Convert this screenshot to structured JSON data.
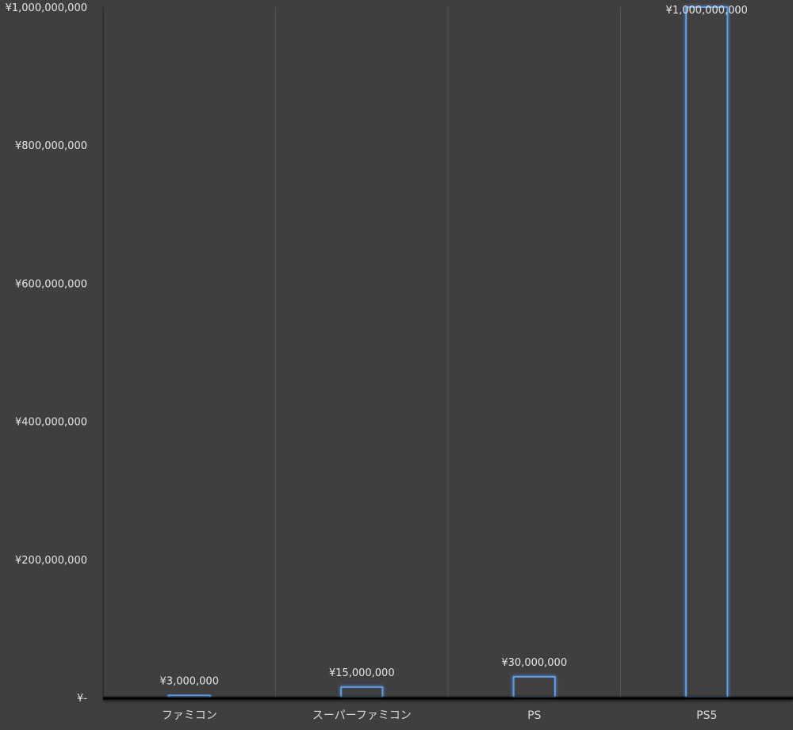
{
  "chart_data": {
    "type": "bar",
    "categories": [
      "ファミコン",
      "スーパーファミコン",
      "PS",
      "PS5"
    ],
    "values": [
      3000000,
      15000000,
      30000000,
      1000000000
    ],
    "data_labels": [
      "¥3,000,000",
      "¥15,000,000",
      "¥30,000,000",
      "¥1,000,000,000"
    ],
    "y_ticks": [
      {
        "value": 0,
        "label": "¥-"
      },
      {
        "value": 200000000,
        "label": "¥200,000,000"
      },
      {
        "value": 400000000,
        "label": "¥400,000,000"
      },
      {
        "value": 600000000,
        "label": "¥600,000,000"
      },
      {
        "value": 800000000,
        "label": "¥800,000,000"
      },
      {
        "value": 1000000000,
        "label": "¥1,000,000,000"
      }
    ],
    "ylim": [
      0,
      1000000000
    ],
    "title": "",
    "xlabel": "",
    "ylabel": "",
    "grid": "vertical category separators",
    "legend": "none",
    "colors": {
      "background": "#3f3f3f",
      "bar_outline": "#4a90d9",
      "bar_glow": "#5aa0ee",
      "bar_fill": "#3f3f3f",
      "axis": "#000000",
      "separator": "#555555",
      "text": "#e6e6e6"
    }
  }
}
